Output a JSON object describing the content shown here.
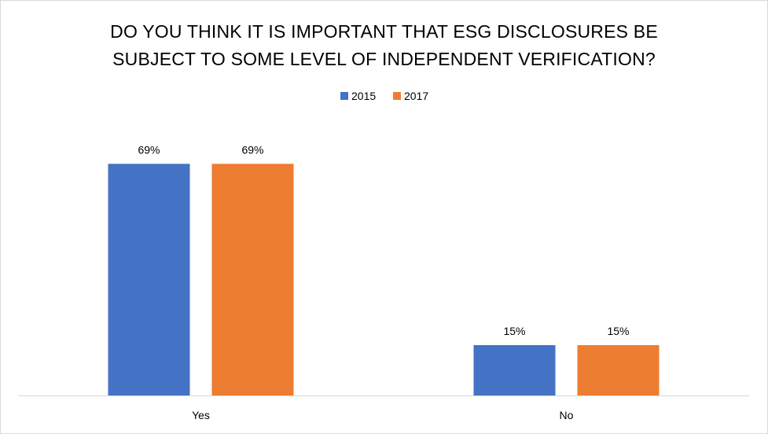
{
  "chart_data": {
    "type": "bar",
    "title_lines": [
      "DO YOU THINK IT IS IMPORTANT THAT ESG DISCLOSURES BE",
      "SUBJECT TO SOME LEVEL OF INDEPENDENT VERIFICATION?"
    ],
    "categories": [
      "Yes",
      "No"
    ],
    "series": [
      {
        "name": "2015",
        "color": "#4472c4",
        "values": [
          69,
          15
        ],
        "labels": [
          "69%",
          "15%"
        ]
      },
      {
        "name": "2017",
        "color": "#ed7d31",
        "values": [
          69,
          15
        ],
        "labels": [
          "69%",
          "15%"
        ]
      }
    ],
    "ylim": [
      0,
      70
    ],
    "xlabel": "",
    "ylabel": "",
    "grid": false,
    "legend_position": "top-center",
    "axis_color": "#d9d9d9"
  }
}
